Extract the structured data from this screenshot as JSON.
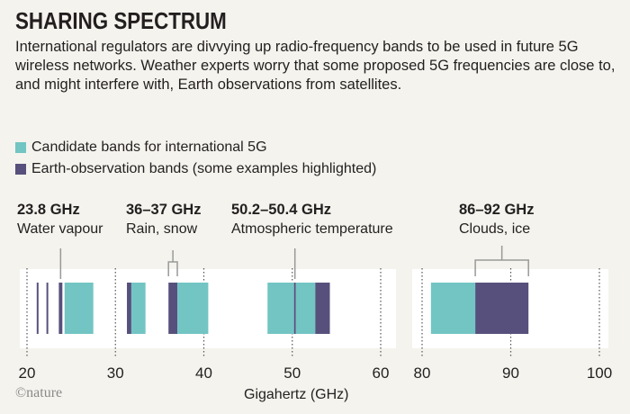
{
  "title": "SHARING SPECTRUM",
  "subtitle": "International regulators are divvying up radio-frequency bands to be used in future 5G wireless networks. Weather experts worry that some proposed 5G frequencies are close to, and might interfere with, Earth observations from satellites.",
  "logo": "©nature",
  "chart_data": {
    "type": "bar",
    "xlabel": "Gigahertz (GHz)",
    "panels": [
      {
        "xlim": [
          20,
          60
        ],
        "ticks": [
          "20",
          "30",
          "40",
          "50",
          "60"
        ]
      },
      {
        "xlim": [
          80,
          100
        ],
        "ticks": [
          "80",
          "90",
          "100"
        ]
      }
    ],
    "legend": [
      {
        "name": "Candidate bands for international 5G",
        "color": "#72c5c3"
      },
      {
        "name": "Earth-observation bands (some examples highlighted)",
        "color": "#57507c"
      }
    ],
    "bands": [
      {
        "type": "earth",
        "from": 21.1,
        "to": 21.3
      },
      {
        "type": "earth",
        "from": 22.2,
        "to": 22.4
      },
      {
        "type": "earth",
        "from": 23.6,
        "to": 24.0
      },
      {
        "type": "5g",
        "from": 24.25,
        "to": 27.5
      },
      {
        "type": "earth",
        "from": 31.3,
        "to": 31.8
      },
      {
        "type": "5g",
        "from": 31.8,
        "to": 33.4
      },
      {
        "type": "earth",
        "from": 36,
        "to": 37
      },
      {
        "type": "5g",
        "from": 37,
        "to": 40.5
      },
      {
        "type": "5g",
        "from": 47.2,
        "to": 50.2
      },
      {
        "type": "earth",
        "from": 50.2,
        "to": 50.4
      },
      {
        "type": "5g",
        "from": 50.4,
        "to": 52.6
      },
      {
        "type": "earth",
        "from": 52.6,
        "to": 54.25
      },
      {
        "type": "5g",
        "from": 81,
        "to": 86
      },
      {
        "type": "earth",
        "from": 86,
        "to": 92
      }
    ],
    "annotations": [
      {
        "freq": "23.8 GHz",
        "label": "Water vapour",
        "from": 23.8,
        "to": 23.8
      },
      {
        "freq": "36–37 GHz",
        "label": "Rain, snow",
        "from": 36,
        "to": 37
      },
      {
        "freq": "50.2–50.4 GHz",
        "label": "Atmospheric temperature",
        "from": 50.3,
        "to": 50.3
      },
      {
        "freq": "86–92 GHz",
        "label": "Clouds, ice",
        "from": 86,
        "to": 92
      }
    ]
  }
}
